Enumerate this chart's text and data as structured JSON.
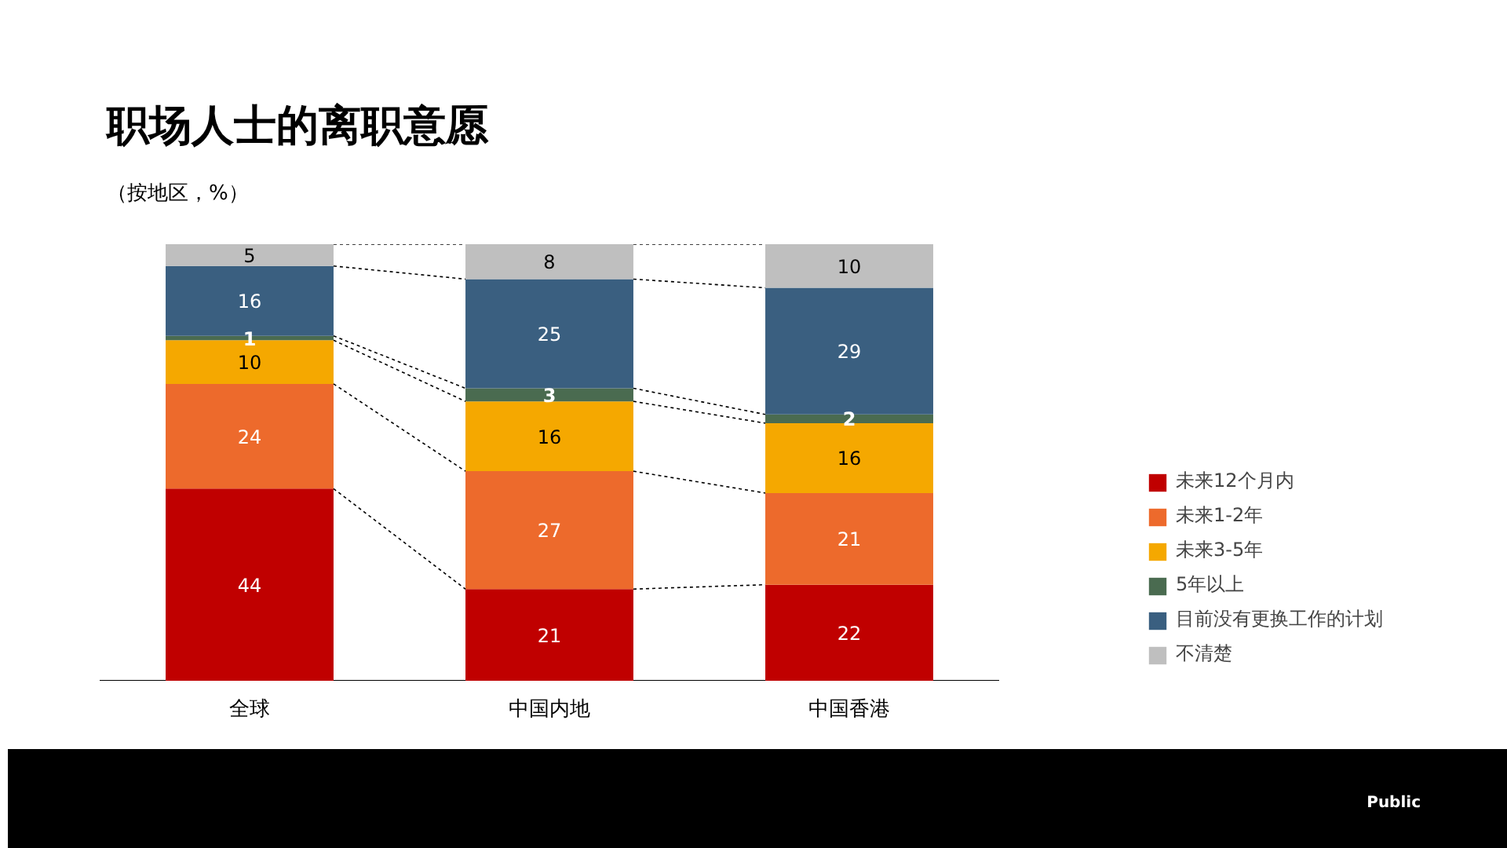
{
  "chart_data": {
    "type": "bar",
    "stacked": true,
    "title": "职场人士的离职意愿",
    "subtitle": "（按地区，%）",
    "categories": [
      "全球",
      "中国内地",
      "中国香港"
    ],
    "series": [
      {
        "name": "未来12个月内",
        "color": "#c00000",
        "values": [
          44,
          21,
          22
        ]
      },
      {
        "name": "未来1-2年",
        "color": "#ed6a2c",
        "values": [
          24,
          27,
          21
        ]
      },
      {
        "name": "未来3-5年",
        "color": "#f5a800",
        "values": [
          10,
          16,
          16
        ]
      },
      {
        "name": "5年以上",
        "color": "#4a6b50",
        "values": [
          1,
          3,
          2
        ]
      },
      {
        "name": "目前没有更换工作的计划",
        "color": "#3a5f80",
        "values": [
          16,
          25,
          29
        ]
      },
      {
        "name": "不清楚",
        "color": "#bfbfbf",
        "values": [
          5,
          8,
          10
        ]
      }
    ],
    "data_labels": true,
    "legend": "right",
    "grid": false,
    "annotations": [
      "Public"
    ]
  }
}
